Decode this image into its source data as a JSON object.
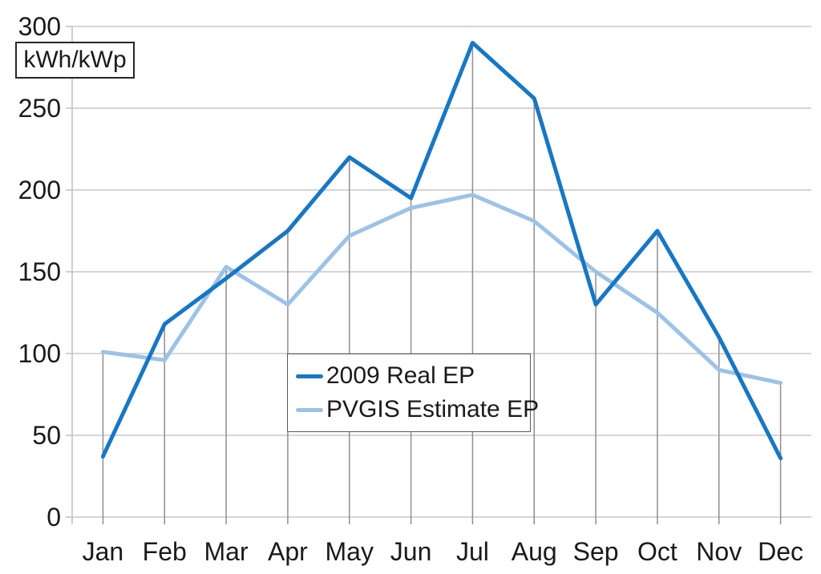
{
  "chart_data": {
    "type": "line",
    "title": "",
    "unit_label": "kWh/kWp",
    "xlabel": "",
    "ylabel": "kWh/kWp",
    "categories": [
      "Jan",
      "Feb",
      "Mar",
      "Apr",
      "May",
      "Jun",
      "Jul",
      "Aug",
      "Sep",
      "Oct",
      "Nov",
      "Dec"
    ],
    "yticks": [
      0,
      50,
      100,
      150,
      200,
      250,
      300
    ],
    "ylim": [
      0,
      300
    ],
    "grid": {
      "horizontal": true,
      "vertical_drop_lines": true
    },
    "legend_position": "center-inside",
    "series": [
      {
        "name": "2009 Real EP",
        "color": "#1877C4",
        "width": 5,
        "values": [
          37,
          118,
          146,
          175,
          220,
          195,
          290,
          256,
          130,
          175,
          110,
          36
        ]
      },
      {
        "name": "PVGIS Estimate EP",
        "color": "#9CC3E6",
        "width": 5,
        "values": [
          101,
          96,
          153,
          130,
          172,
          189,
          197,
          181,
          150,
          125,
          90,
          82
        ]
      }
    ]
  },
  "colors": {
    "background": "#FFFFFF",
    "gridline": "#C9C9C9",
    "axis": "#BFBFBF",
    "drop_line": "#8F8F8F",
    "text": "#1A1A1A",
    "legend_border": "#595959",
    "unit_box_border": "#262626"
  }
}
